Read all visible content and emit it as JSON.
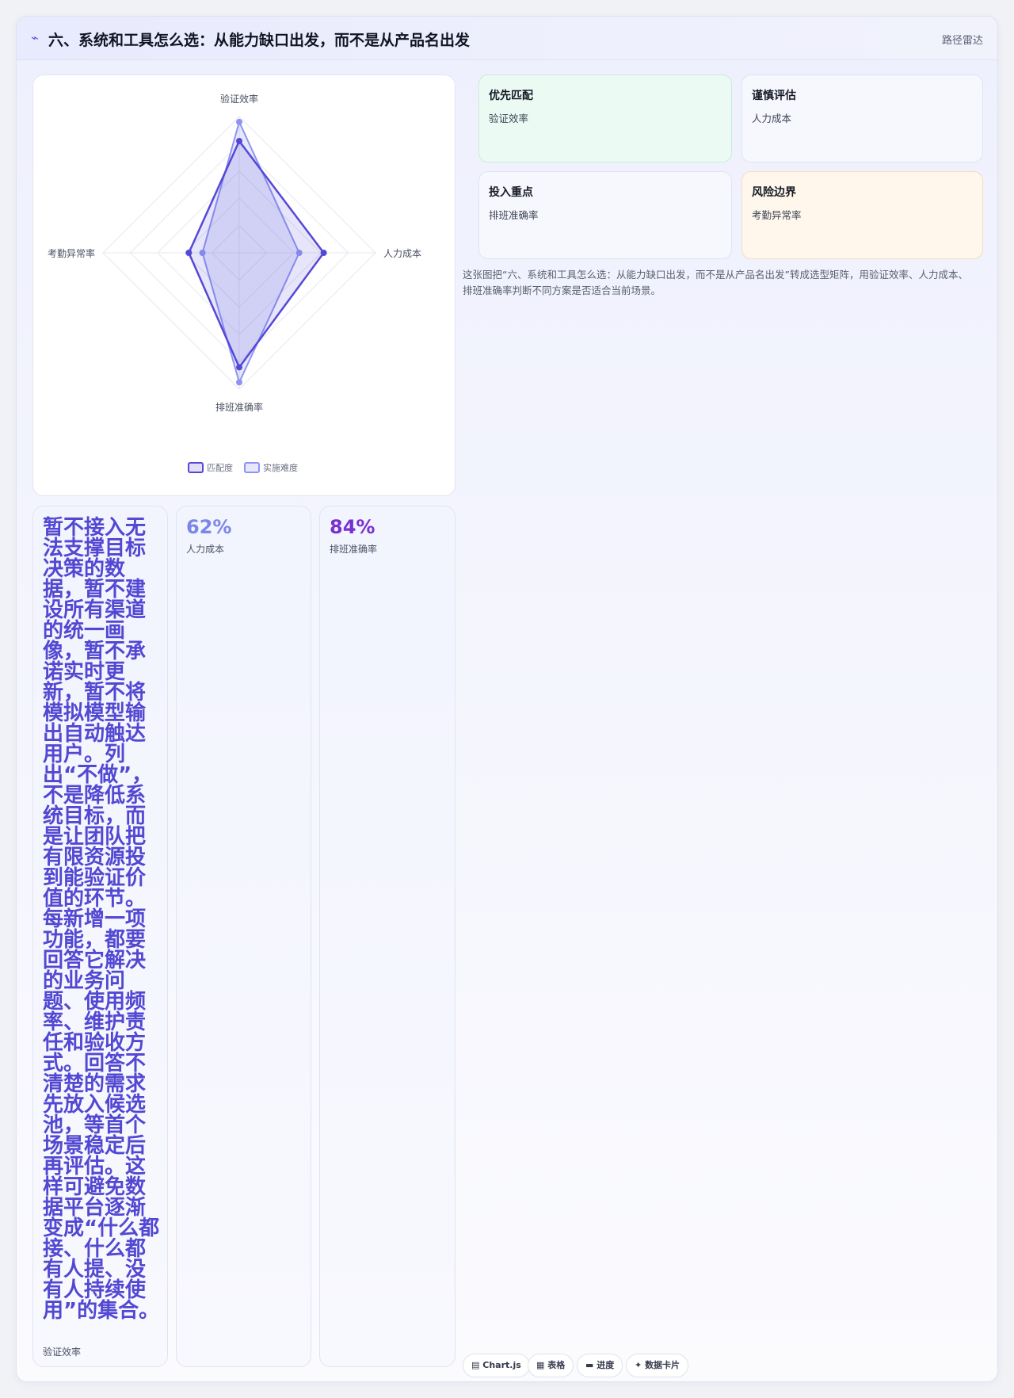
{
  "header": {
    "icon": "wave-icon",
    "icon_glyph": "⌁",
    "title": "六、系统和工具怎么选：从能力缺口出发，而不是从产品名出发",
    "tag": "路径雷达"
  },
  "chart_data": {
    "type": "radar",
    "axes": [
      "验证效率",
      "人力成本",
      "排班准确率",
      "考勤异常率"
    ],
    "series": [
      {
        "name": "匹配度",
        "values": [
          82,
          62,
          84,
          37
        ],
        "color": "#5548d6"
      },
      {
        "name": "实施难度",
        "values": [
          96,
          44,
          95,
          27
        ],
        "color": "#8e94f0"
      }
    ],
    "rlim": [
      0,
      100
    ],
    "grid_rings": 5,
    "legend_position": "bottom"
  },
  "tiles": [
    {
      "title": "优先匹配",
      "sub": "验证效率",
      "tone": "green"
    },
    {
      "title": "谨慎评估",
      "sub": "人力成本",
      "tone": "neutral"
    },
    {
      "title": "投入重点",
      "sub": "排班准确率",
      "tone": "neutral"
    },
    {
      "title": "风险边界",
      "sub": "考勤异常率",
      "tone": "orange"
    }
  ],
  "description": "这张图把“六、系统和工具怎么选：从能力缺口出发，而不是从产品名出发”转成选型矩阵，用验证效率、人力成本、排班准确率判断不同方案是否适合当前场景。",
  "stats": {
    "note": {
      "text": "暂不接入无法支撑目标决策的数据，暂不建设所有渠道的统一画像，暂不承诺实时更新，暂不将模拟模型输出自动触达用户。列出“不做”，不是降低系统目标，而是让团队把有限资源投到能验证价值的环节。 每新增一项功能，都要回答它解决的业务问题、使用频率、维护责任和验收方式。回答不清楚的需求先放入候选池，等首个场景稳定后再评估。这样可避免数据平台逐渐变成“什么都接、什么都有人提、没有人持续使用”的集合。",
      "label": "验证效率"
    },
    "metric1": {
      "value": "62%",
      "label": "人力成本",
      "color": "#7b86e8"
    },
    "metric2": {
      "value": "84%",
      "label": "排班准确率",
      "color": "#7a2fd0"
    }
  },
  "chips": [
    {
      "icon": "chart-icon",
      "glyph": "▤",
      "label": "Chart.js"
    },
    {
      "icon": "table-icon",
      "glyph": "▦",
      "label": "表格"
    },
    {
      "icon": "progress-icon",
      "glyph": "▬",
      "label": "进度"
    },
    {
      "icon": "sparkle-icon",
      "glyph": "✦",
      "label": "数据卡片"
    }
  ]
}
